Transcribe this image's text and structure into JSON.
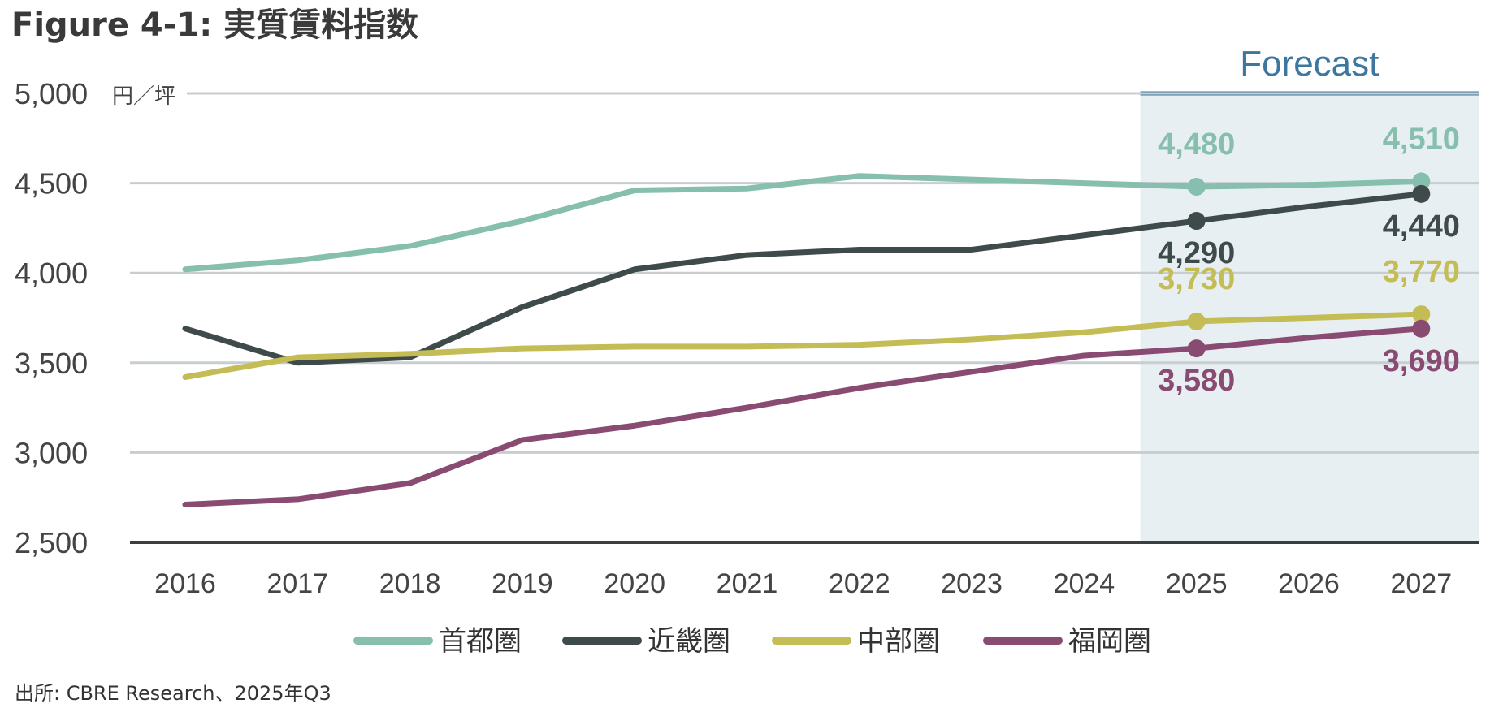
{
  "chart_data": {
    "type": "line",
    "title": "Figure 4-1: 実質賃料指数",
    "ylabel": "円／坪",
    "ylim": [
      2500,
      5000
    ],
    "yticks": [
      "5,000",
      "4,500",
      "4,000",
      "3,500",
      "3,000",
      "2,500"
    ],
    "yticks_values": [
      5000,
      4500,
      4000,
      3500,
      3000,
      2500
    ],
    "categories": [
      "2016",
      "2017",
      "2018",
      "2019",
      "2020",
      "2021",
      "2022",
      "2023",
      "2024",
      "2025",
      "2026",
      "2027"
    ],
    "forecast_label": "Forecast",
    "forecast_start": "2025",
    "grid": true,
    "legend_position": "bottom",
    "series": [
      {
        "name": "首都圏",
        "color": "#86bfae",
        "values": [
          4020,
          4070,
          4150,
          4290,
          4460,
          4470,
          4540,
          4520,
          4500,
          4480,
          4490,
          4510
        ],
        "markers": [
          {
            "index": 9,
            "label": "4,480",
            "pos": "above"
          },
          {
            "index": 11,
            "label": "4,510",
            "pos": "above"
          }
        ]
      },
      {
        "name": "近畿圏",
        "color": "#3f4a4a",
        "values": [
          3690,
          3500,
          3530,
          3810,
          4020,
          4100,
          4130,
          4130,
          4210,
          4290,
          4370,
          4440
        ],
        "markers": [
          {
            "index": 9,
            "label": "4,290",
            "pos": "below"
          },
          {
            "index": 11,
            "label": "4,440",
            "pos": "below"
          }
        ]
      },
      {
        "name": "中部圏",
        "color": "#c4bd55",
        "values": [
          3420,
          3530,
          3550,
          3580,
          3590,
          3590,
          3600,
          3630,
          3670,
          3730,
          3750,
          3770
        ],
        "markers": [
          {
            "index": 9,
            "label": "3,730",
            "pos": "above"
          },
          {
            "index": 11,
            "label": "3,770",
            "pos": "above"
          }
        ]
      },
      {
        "name": "福岡圏",
        "color": "#8a4b73",
        "values": [
          2710,
          2740,
          2830,
          3070,
          3150,
          3250,
          3360,
          3450,
          3540,
          3580,
          3640,
          3690
        ],
        "markers": [
          {
            "index": 9,
            "label": "3,580",
            "pos": "below"
          },
          {
            "index": 11,
            "label": "3,690",
            "pos": "below"
          }
        ]
      }
    ],
    "source": "出所: CBRE Research、2025年Q3"
  },
  "colors": {
    "forecast_band": "#e8eff2",
    "forecast_line": "#3d77a0",
    "gridline": "#c8cdd0",
    "axis": "#3a4040"
  }
}
